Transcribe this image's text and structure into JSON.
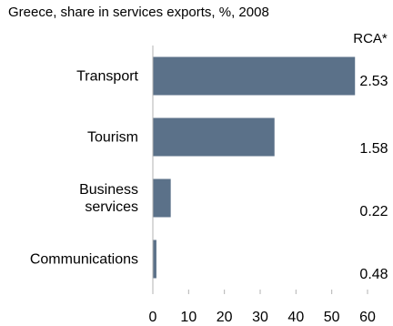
{
  "chart_data": {
    "type": "bar",
    "orientation": "horizontal",
    "title": "Greece, share in services exports, %, 2008",
    "categories": [
      [
        "Transport"
      ],
      [
        "Tourism"
      ],
      [
        "Business",
        "services"
      ],
      [
        "Communications"
      ]
    ],
    "values": [
      56.5,
      34,
      5,
      1
    ],
    "xlim": [
      0,
      60
    ],
    "xticks": [
      0,
      10,
      20,
      30,
      40,
      50,
      60
    ],
    "right_column_header": "RCA*",
    "right_column_values": [
      "2.53",
      "1.58",
      "0.22",
      "0.48"
    ],
    "bar_color": "#5b7189",
    "grid": false
  }
}
